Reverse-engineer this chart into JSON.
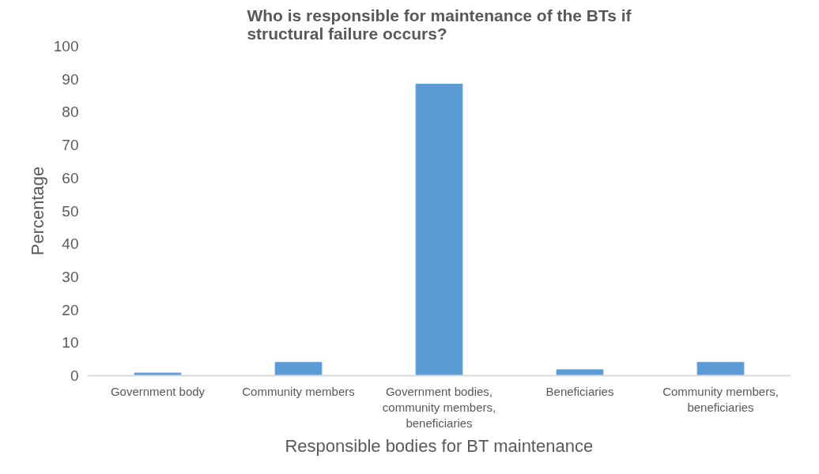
{
  "chart_data": {
    "type": "bar",
    "title": "Who is responsible for maintenance of the BTs if structural failure occurs?",
    "xlabel": "Responsible bodies for BT maintenance",
    "ylabel": "Percentage",
    "categories": [
      "Government body",
      "Community members",
      "Government bodies, community members, beneficiaries",
      "Beneficiaries",
      "Community members, beneficiaries"
    ],
    "values": [
      0.8,
      4,
      88.5,
      1.8,
      4
    ],
    "color": "#5b9bd5",
    "ylim": [
      0,
      100
    ],
    "yticks": [
      0,
      10,
      20,
      30,
      40,
      50,
      60,
      70,
      80,
      90,
      100
    ],
    "grid": false
  }
}
